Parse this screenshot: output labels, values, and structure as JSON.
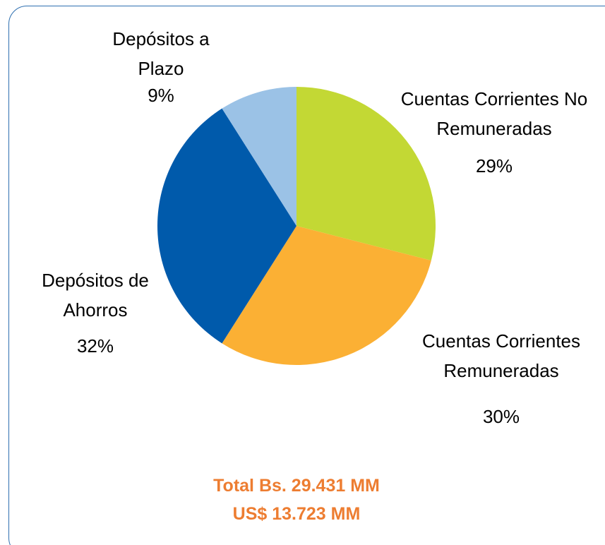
{
  "chart_data": {
    "type": "pie",
    "categories": [
      "Cuentas Corrientes No Remuneradas",
      "Cuentas Corrientes Remuneradas",
      "Depósitos de Ahorros",
      "Depósitos a Plazo"
    ],
    "values": [
      29,
      30,
      32,
      9
    ],
    "value_labels": [
      "29%",
      "30%",
      "32%",
      "9%"
    ],
    "colors": [
      "#c3d834",
      "#fbb034",
      "#005aab",
      "#9bc2e6"
    ],
    "annotations": [
      "Total Bs. 29.431 MM",
      "US$ 13.723 MM"
    ]
  }
}
